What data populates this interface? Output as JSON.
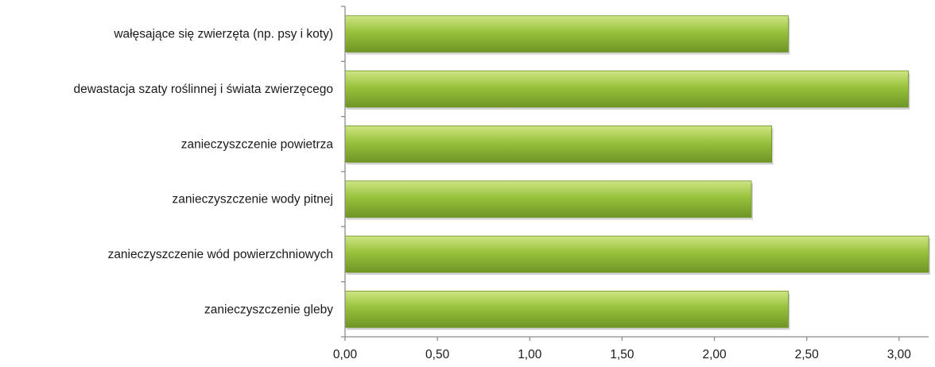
{
  "chart_data": {
    "type": "bar",
    "orientation": "horizontal",
    "title": "",
    "xlabel": "",
    "ylabel": "",
    "categories": [
      "wałęsające się zwierzęta (np. psy i koty)",
      "dewastacja szaty roślinnej i świata zwierzęcego",
      "zanieczyszczenie powietrza",
      "zanieczyszczenie wody pitnej",
      "zanieczyszczenie wód powierzchniowych",
      "zanieczyszczenie gleby"
    ],
    "values": [
      2.4,
      3.05,
      2.31,
      2.2,
      3.16,
      2.4
    ],
    "xlim": [
      0,
      3.16
    ],
    "xticks": [
      0,
      0.5,
      1,
      1.5,
      2,
      2.5,
      3
    ],
    "xtick_labels": [
      "0,00",
      "0,50",
      "1,00",
      "1,50",
      "2,00",
      "2,50",
      "3,00"
    ],
    "grid": false,
    "legend": "none",
    "colors": {
      "bar_light": "#cfe584",
      "bar_mid": "#98c23c",
      "bar_dark": "#6f9526",
      "axis": "#8c8c8c",
      "text": "#1a1a1a"
    }
  }
}
